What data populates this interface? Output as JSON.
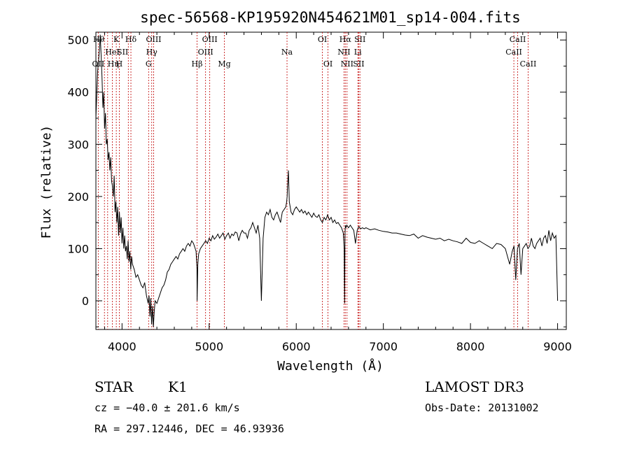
{
  "chart_data": {
    "type": "line",
    "title": "spec-56568-KP195920N454621M01_sp14-004.fits",
    "xlabel": "Wavelength (Å)",
    "ylabel": "Flux (relative)",
    "xlim": [
      3700,
      9100
    ],
    "ylim": [
      -55,
      515
    ],
    "xticks": [
      4000,
      5000,
      6000,
      7000,
      8000,
      9000
    ],
    "yticks": [
      0,
      100,
      200,
      300,
      400,
      500
    ],
    "grid": false,
    "series": [
      {
        "x": [
          3700,
          3720,
          3740,
          3750,
          3760,
          3770,
          3780,
          3790,
          3800,
          3810,
          3820,
          3830,
          3840,
          3850,
          3860,
          3870,
          3880,
          3890,
          3900,
          3910,
          3920,
          3930,
          3940,
          3950,
          3960,
          3970,
          3980,
          3990,
          4000,
          4010,
          4020,
          4030,
          4040,
          4050,
          4060,
          4070,
          4080,
          4090,
          4100,
          4110,
          4120,
          4140,
          4160,
          4180,
          4200,
          4220,
          4240,
          4260,
          4280,
          4300,
          4310,
          4320,
          4330,
          4340,
          4350,
          4360,
          4370,
          4380,
          4400,
          4420,
          4440,
          4460,
          4480,
          4500,
          4520,
          4540,
          4560,
          4580,
          4600,
          4620,
          4640,
          4660,
          4680,
          4700,
          4720,
          4740,
          4760,
          4780,
          4800,
          4820,
          4840,
          4850,
          4860,
          4862,
          4870,
          4880,
          4900,
          4920,
          4940,
          4960,
          4980,
          5000,
          5020,
          5040,
          5060,
          5080,
          5100,
          5120,
          5140,
          5160,
          5180,
          5200,
          5220,
          5240,
          5260,
          5280,
          5300,
          5320,
          5340,
          5360,
          5380,
          5400,
          5420,
          5440,
          5460,
          5480,
          5500,
          5520,
          5540,
          5560,
          5580,
          5600,
          5620,
          5640,
          5660,
          5680,
          5700,
          5720,
          5740,
          5760,
          5780,
          5800,
          5820,
          5840,
          5860,
          5880,
          5890,
          5895,
          5900,
          5910,
          5920,
          5940,
          5960,
          5980,
          6000,
          6020,
          6040,
          6060,
          6080,
          6100,
          6120,
          6140,
          6160,
          6180,
          6200,
          6220,
          6240,
          6260,
          6280,
          6300,
          6320,
          6340,
          6360,
          6380,
          6400,
          6420,
          6440,
          6460,
          6480,
          6500,
          6520,
          6540,
          6550,
          6555,
          6560,
          6565,
          6570,
          6580,
          6600,
          6620,
          6640,
          6660,
          6680,
          6700,
          6710,
          6720,
          6740,
          6760,
          6780,
          6800,
          6850,
          6900,
          6950,
          7000,
          7050,
          7100,
          7150,
          7200,
          7250,
          7300,
          7350,
          7400,
          7450,
          7500,
          7550,
          7600,
          7650,
          7700,
          7750,
          7800,
          7850,
          7900,
          7950,
          8000,
          8050,
          8100,
          8150,
          8200,
          8250,
          8300,
          8350,
          8400,
          8450,
          8480,
          8500,
          8520,
          8540,
          8560,
          8580,
          8600,
          8620,
          8640,
          8660,
          8680,
          8700,
          8720,
          8740,
          8760,
          8780,
          8800,
          8820,
          8840,
          8860,
          8880,
          8900,
          8920,
          8940,
          8960,
          8980,
          9000
        ],
        "y": [
          350,
          440,
          480,
          510,
          470,
          430,
          370,
          400,
          330,
          360,
          300,
          310,
          270,
          285,
          250,
          275,
          230,
          220,
          200,
          240,
          170,
          190,
          150,
          180,
          125,
          170,
          130,
          160,
          110,
          140,
          100,
          125,
          95,
          105,
          80,
          115,
          75,
          95,
          60,
          85,
          70,
          60,
          45,
          50,
          40,
          30,
          25,
          35,
          10,
          -5,
          10,
          -30,
          5,
          -45,
          -10,
          -50,
          -20,
          0,
          -5,
          5,
          15,
          25,
          30,
          40,
          55,
          60,
          70,
          75,
          80,
          85,
          80,
          90,
          95,
          100,
          95,
          105,
          110,
          105,
          115,
          110,
          100,
          95,
          60,
          0,
          70,
          90,
          100,
          105,
          110,
          115,
          110,
          120,
          115,
          125,
          118,
          122,
          128,
          120,
          125,
          130,
          118,
          125,
          130,
          120,
          128,
          125,
          132,
          130,
          115,
          128,
          135,
          130,
          130,
          120,
          135,
          140,
          150,
          140,
          130,
          145,
          120,
          0,
          120,
          160,
          170,
          165,
          175,
          160,
          155,
          165,
          170,
          160,
          150,
          170,
          175,
          180,
          190,
          200,
          220,
          250,
          190,
          170,
          165,
          175,
          180,
          175,
          170,
          175,
          168,
          172,
          165,
          170,
          165,
          160,
          168,
          162,
          160,
          165,
          155,
          150,
          160,
          155,
          165,
          155,
          160,
          150,
          155,
          148,
          150,
          145,
          140,
          130,
          100,
          -5,
          130,
          145,
          140,
          145,
          140,
          145,
          140,
          135,
          110,
          135,
          140,
          142,
          138,
          140,
          138,
          140,
          136,
          138,
          135,
          133,
          132,
          130,
          130,
          128,
          126,
          125,
          128,
          120,
          125,
          122,
          120,
          118,
          120,
          115,
          118,
          115,
          113,
          110,
          120,
          112,
          110,
          115,
          110,
          105,
          100,
          110,
          108,
          100,
          70,
          95,
          105,
          40,
          100,
          110,
          50,
          100,
          105,
          110,
          100,
          105,
          120,
          105,
          100,
          110,
          115,
          120,
          105,
          120,
          125,
          110,
          135,
          115,
          130,
          120,
          125,
          0
        ]
      }
    ],
    "line_markers": [
      {
        "label": "OII",
        "wave": 3727,
        "row": 2,
        "anchor": "middle"
      },
      {
        "label": "Hθ",
        "wave": 3798,
        "row": 0,
        "anchor": "end"
      },
      {
        "label": "Hη",
        "wave": 3835,
        "row": 2,
        "anchor": "start"
      },
      {
        "label": "HeI",
        "wave": 3889,
        "row": 1,
        "anchor": "middle"
      },
      {
        "label": "K",
        "wave": 3934,
        "row": 0,
        "anchor": "middle"
      },
      {
        "label": "H",
        "wave": 3969,
        "row": 2,
        "anchor": "middle"
      },
      {
        "label": "SII",
        "wave": 4072,
        "row": 1,
        "anchor": "end"
      },
      {
        "label": "Hδ",
        "wave": 4102,
        "row": 0,
        "anchor": "middle"
      },
      {
        "label": "G",
        "wave": 4305,
        "row": 2,
        "anchor": "middle"
      },
      {
        "label": "Hγ",
        "wave": 4341,
        "row": 1,
        "anchor": "middle"
      },
      {
        "label": "OIII",
        "wave": 4363,
        "row": 0,
        "anchor": "middle"
      },
      {
        "label": "Hβ",
        "wave": 4861,
        "row": 2,
        "anchor": "middle"
      },
      {
        "label": "OIII",
        "wave": 4959,
        "row": 1,
        "anchor": "middle"
      },
      {
        "label": "OIII",
        "wave": 5007,
        "row": 0,
        "anchor": "middle"
      },
      {
        "label": "Mg",
        "wave": 5175,
        "row": 2,
        "anchor": "middle"
      },
      {
        "label": "Na",
        "wave": 5894,
        "row": 1,
        "anchor": "middle"
      },
      {
        "label": "OI",
        "wave": 6300,
        "row": 0,
        "anchor": "middle"
      },
      {
        "label": "OI",
        "wave": 6364,
        "row": 2,
        "anchor": "middle"
      },
      {
        "label": "NII",
        "wave": 6548,
        "row": 1,
        "anchor": "middle"
      },
      {
        "label": "Hα",
        "wave": 6563,
        "row": 0,
        "anchor": "middle"
      },
      {
        "label": "NII",
        "wave": 6583,
        "row": 2,
        "anchor": "middle"
      },
      {
        "label": "Li",
        "wave": 6707,
        "row": 1,
        "anchor": "middle"
      },
      {
        "label": "SII",
        "wave": 6717,
        "row": 2,
        "anchor": "middle"
      },
      {
        "label": "SII",
        "wave": 6731,
        "row": 0,
        "anchor": "middle"
      },
      {
        "label": "CaII",
        "wave": 8498,
        "row": 1,
        "anchor": "middle"
      },
      {
        "label": "CaII",
        "wave": 8542,
        "row": 0,
        "anchor": "middle"
      },
      {
        "label": "CaII",
        "wave": 8662,
        "row": 2,
        "anchor": "middle"
      }
    ],
    "line_marker_color": "#c00000",
    "info": {
      "object_type": "STAR",
      "subclass": "K1",
      "survey": "LAMOST DR3",
      "cz": "cz = −40.0 ± 201.6 km/s",
      "obs_date": "Obs-Date: 20131002",
      "coords": "RA = 297.12446, DEC =  46.93936"
    }
  }
}
